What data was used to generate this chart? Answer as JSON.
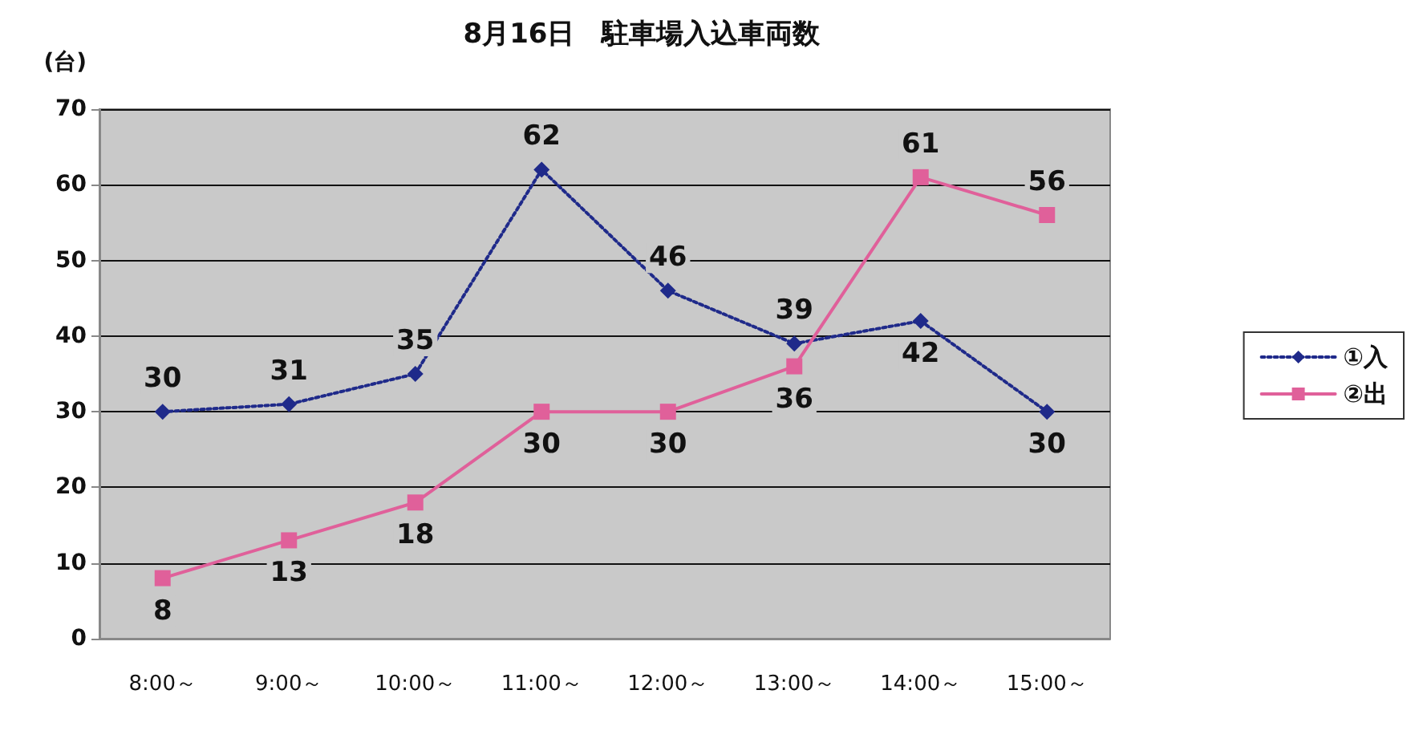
{
  "chart_data": {
    "type": "line",
    "title": "8月16日　駐車場入込車両数",
    "ylabel": "(台)",
    "categories": [
      "8:00～",
      "9:00～",
      "10:00～",
      "11:00～",
      "12:00～",
      "13:00～",
      "14:00～",
      "15:00～"
    ],
    "series": [
      {
        "name": "①入",
        "color": "#1f2a8a",
        "marker": "diamond",
        "line_style": "dotted",
        "values": [
          30,
          31,
          35,
          62,
          46,
          39,
          42,
          30
        ]
      },
      {
        "name": "②出",
        "color": "#e0609a",
        "marker": "square",
        "line_style": "solid",
        "values": [
          8,
          13,
          18,
          30,
          30,
          36,
          61,
          56
        ]
      }
    ],
    "ylim": [
      0,
      70
    ],
    "yticks": [
      0,
      10,
      20,
      30,
      40,
      50,
      60,
      70
    ],
    "grid": "y",
    "legend": "right",
    "data_labels": true
  }
}
